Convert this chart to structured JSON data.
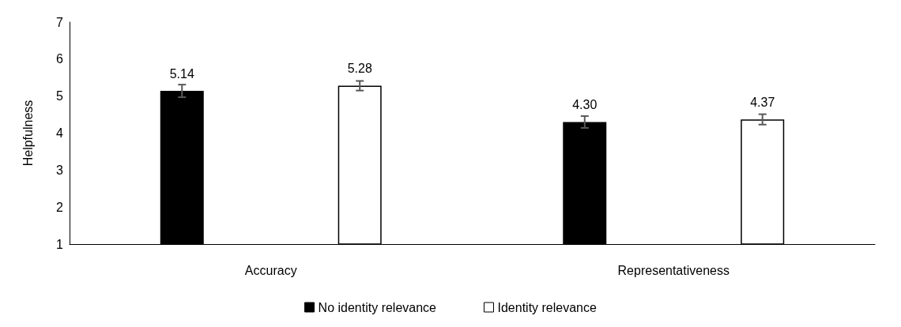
{
  "chart_data": {
    "type": "bar",
    "ylabel": "Helpfulness",
    "categories": [
      "Accuracy",
      "Representativeness"
    ],
    "series": [
      {
        "name": "No identity relevance",
        "color": "#000000",
        "values": [
          5.14,
          4.3
        ],
        "errors": [
          0.17,
          0.16
        ],
        "value_labels": [
          "5.14",
          "4.30"
        ]
      },
      {
        "name": "Identity relevance",
        "color": "#ffffff",
        "values": [
          5.28,
          4.37
        ],
        "errors": [
          0.13,
          0.14
        ],
        "value_labels": [
          "5.28",
          "4.37"
        ]
      }
    ],
    "ylim": [
      1,
      7
    ],
    "yticks": [
      1,
      2,
      3,
      4,
      5,
      6,
      7
    ],
    "grid": false,
    "legend": "bottom"
  }
}
